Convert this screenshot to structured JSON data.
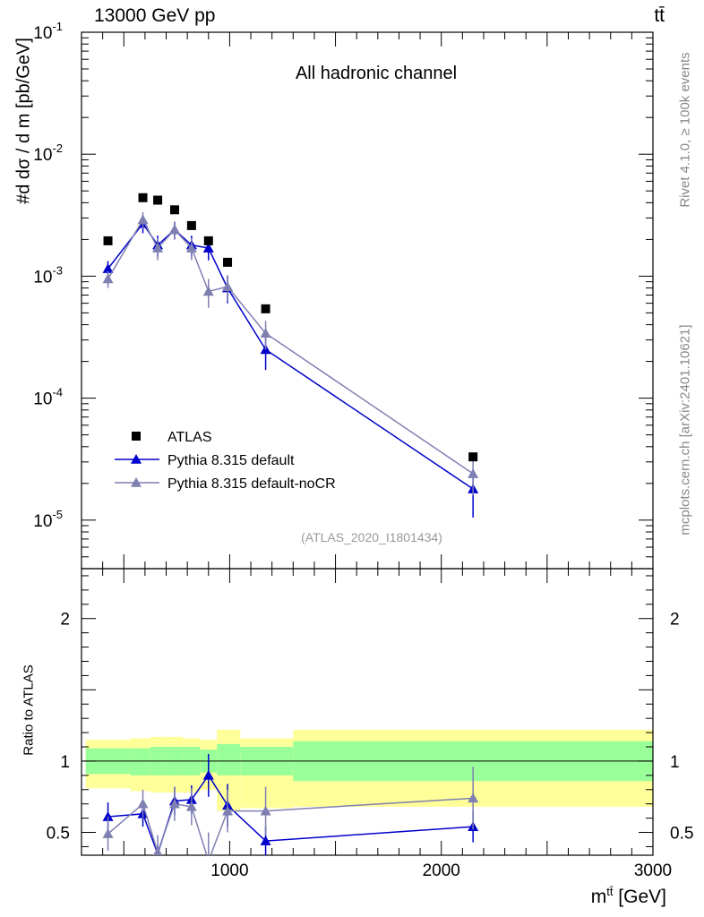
{
  "header": {
    "energy": "13000 GeV pp",
    "process": "tt̄"
  },
  "side_text": {
    "rivet": "Rivet 4.1.0, ≥ 100k events",
    "mcplots": "mcplots.cern.ch [arXiv:2401.10621]"
  },
  "chart_data": {
    "type": "scatter",
    "title": "All hadronic channel",
    "analysis": "(ATLAS_2020_I1801434)",
    "xlabel": "m^{tt̄} [GeV]",
    "xlabel_main": "m",
    "xlabel_sup": "tt̄",
    "xlabel_unit": "[GeV]",
    "ylabel": "#d dσ^{tt̄}/d m^{tt̄} [pb/GeV]",
    "ylabel_text": "#d dσ / d m [pb/GeV]",
    "ratio_ylabel": "Ratio to ATLAS",
    "xlim": [
      300,
      3000
    ],
    "ylim": [
      4e-06,
      0.1
    ],
    "yscale": "log",
    "ratio_ylim": [
      0.34,
      2.35
    ],
    "x_ticks": [
      1000,
      2000,
      3000
    ],
    "x_tick_labels": [
      "1000",
      "2000",
      "3000"
    ],
    "y_tick_labels": [
      "10^{-1}",
      "10^{-2}",
      "10^{-3}",
      "10^{-4}",
      "10^{-5}"
    ],
    "y_ticks": [
      0.1,
      0.01,
      0.001,
      0.0001,
      1e-05
    ],
    "ratio_ticks": [
      0.5,
      1,
      2
    ],
    "ratio_tick_labels": [
      "0.5",
      "1",
      "2"
    ],
    "legend": [
      "ATLAS",
      "Pythia 8.315 default",
      "Pythia 8.315 default-noCR"
    ],
    "legend_position": "bottom-left",
    "x": [
      425,
      590,
      660,
      740,
      820,
      900,
      990,
      1170,
      2150
    ],
    "bins": [
      [
        320,
        530
      ],
      [
        530,
        625
      ],
      [
        625,
        695
      ],
      [
        695,
        780
      ],
      [
        780,
        860
      ],
      [
        860,
        940
      ],
      [
        940,
        1050
      ],
      [
        1050,
        1300
      ],
      [
        1300,
        3000
      ]
    ],
    "series": [
      {
        "name": "ATLAS",
        "values": [
          0.00195,
          0.0044,
          0.0042,
          0.0035,
          0.0026,
          0.00195,
          0.0013,
          0.00054,
          3.3e-05
        ]
      },
      {
        "name": "Pythia 8.315 default",
        "color": "#0000cc",
        "values": [
          0.00115,
          0.0027,
          0.0018,
          0.0024,
          0.0018,
          0.0017,
          0.0008,
          0.00025,
          1.8e-05
        ],
        "errors": [
          0.00018,
          0.00045,
          0.00035,
          0.0004,
          0.00035,
          0.00035,
          0.0002,
          8e-05,
          7.5e-06
        ],
        "ratio": [
          0.61,
          0.63,
          0.35,
          0.72,
          0.73,
          0.9,
          0.69,
          0.44,
          0.54
        ],
        "ratio_errors": [
          0.1,
          0.09,
          0.06,
          0.1,
          0.1,
          0.15,
          0.15,
          0.1,
          0.11
        ]
      },
      {
        "name": "Pythia 8.315 default-noCR",
        "color": "#7f7fb2",
        "values": [
          0.00095,
          0.0029,
          0.0017,
          0.0024,
          0.0017,
          0.00075,
          0.00082,
          0.00034,
          2.4e-05
        ],
        "errors": [
          0.00015,
          0.00045,
          0.00035,
          0.0004,
          0.00035,
          0.0002,
          0.0002,
          9e-05,
          8e-06
        ],
        "ratio": [
          0.49,
          0.7,
          0.36,
          0.7,
          0.68,
          0.3,
          0.65,
          0.65,
          0.74
        ],
        "ratio_errors": [
          0.12,
          0.1,
          0.12,
          0.12,
          0.13,
          0.2,
          0.15,
          0.17,
          0.22
        ]
      }
    ],
    "uncertainty_band": {
      "inner": [
        [
          0.91,
          1.09
        ],
        [
          0.9,
          1.09
        ],
        [
          0.9,
          1.1
        ],
        [
          0.9,
          1.1
        ],
        [
          0.9,
          1.1
        ],
        [
          0.92,
          1.08
        ],
        [
          0.9,
          1.12
        ],
        [
          0.9,
          1.1
        ],
        [
          0.86,
          1.14
        ]
      ],
      "outer": [
        [
          0.81,
          1.15
        ],
        [
          0.79,
          1.16
        ],
        [
          0.78,
          1.17
        ],
        [
          0.78,
          1.17
        ],
        [
          0.78,
          1.16
        ],
        [
          0.8,
          1.15
        ],
        [
          0.65,
          1.22
        ],
        [
          0.67,
          1.16
        ],
        [
          0.68,
          1.22
        ]
      ],
      "inner_color": "#99ff99",
      "outer_color": "#ffff99"
    }
  }
}
